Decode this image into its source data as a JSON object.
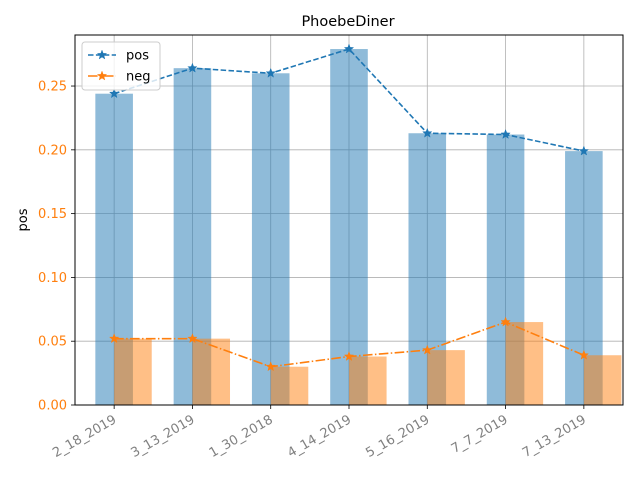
{
  "chart_data": {
    "type": "bar",
    "title": "PhoebeDiner",
    "xlabel": "",
    "ylabel": "pos",
    "categories": [
      "2_18_2019",
      "3_13_2019",
      "1_30_2018",
      "4_14_2019",
      "5_16_2019",
      "7_7_2019",
      "7_13_2019"
    ],
    "ylim": [
      0,
      0.29
    ],
    "yticks": [
      "0.00",
      "0.05",
      "0.10",
      "0.15",
      "0.20",
      "0.25"
    ],
    "grid": true,
    "legend_position": "top-left",
    "series": [
      {
        "name": "pos",
        "values": [
          0.244,
          0.264,
          0.26,
          0.279,
          0.213,
          0.212,
          0.199
        ],
        "bar_color": "#1f77b4",
        "line_color": "#1f77b4",
        "line_style": "dashed",
        "marker": "star"
      },
      {
        "name": "neg",
        "values": [
          0.052,
          0.052,
          0.03,
          0.038,
          0.043,
          0.065,
          0.039
        ],
        "bar_color": "#ff7f0e",
        "line_color": "#ff7f0e",
        "line_style": "dash-dot",
        "marker": "star"
      }
    ],
    "colors": {
      "ytick": "#ff7f0e",
      "xtick": "#808080",
      "grid": "#b0b0b0"
    }
  }
}
